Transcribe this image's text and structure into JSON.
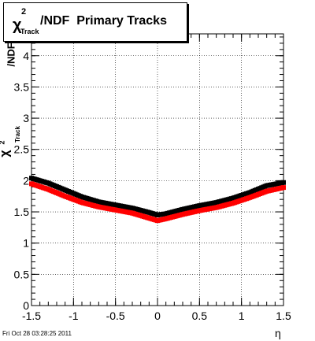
{
  "title": {
    "chi": "χ",
    "sup": "2",
    "sub": "Track",
    "rest": "/NDF  Primary Tracks"
  },
  "ylabel": {
    "chi": "χ",
    "sup": "2",
    "sub": "Track",
    "rest": "/NDF"
  },
  "xlabel": "η",
  "timestamp": "Fri Oct 28 03:28:25 2011",
  "colors": {
    "black_series": "#000000",
    "red_series": "#ff0000",
    "grid": "#000000"
  },
  "chart_data": {
    "type": "scatter",
    "xlim": [
      -1.5,
      1.5
    ],
    "ylim": [
      0,
      4.35
    ],
    "xticks": [
      "-1.5",
      "-1",
      "-0.5",
      "0",
      "0.5",
      "1",
      "1.5"
    ],
    "yticks": [
      "0",
      "0.5",
      "1",
      "1.5",
      "2",
      "2.5",
      "3",
      "3.5",
      "4"
    ],
    "grid": true,
    "series": [
      {
        "color": "#000000",
        "x": [
          -1.5,
          -1.3,
          -1.1,
          -0.9,
          -0.7,
          -0.5,
          -0.3,
          -0.1,
          0.0,
          0.1,
          0.3,
          0.5,
          0.7,
          0.9,
          1.1,
          1.3,
          1.5
        ],
        "y": [
          2.04,
          1.96,
          1.85,
          1.74,
          1.66,
          1.61,
          1.56,
          1.49,
          1.45,
          1.47,
          1.54,
          1.6,
          1.65,
          1.72,
          1.81,
          1.92,
          1.97
        ]
      },
      {
        "color": "#ff0000",
        "x": [
          -1.5,
          -1.3,
          -1.1,
          -0.9,
          -0.7,
          -0.5,
          -0.3,
          -0.1,
          0.0,
          0.1,
          0.3,
          0.5,
          0.7,
          0.9,
          1.1,
          1.3,
          1.5
        ],
        "y": [
          1.95,
          1.86,
          1.75,
          1.65,
          1.58,
          1.53,
          1.48,
          1.4,
          1.36,
          1.39,
          1.46,
          1.52,
          1.57,
          1.64,
          1.73,
          1.83,
          1.89
        ]
      }
    ]
  }
}
